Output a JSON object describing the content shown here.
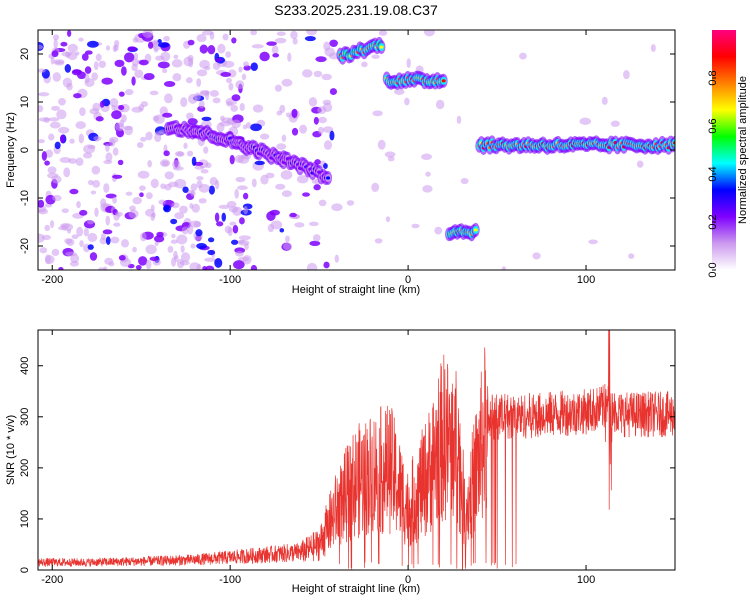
{
  "title": "S233.2025.231.19.08.C37",
  "chart_data": [
    {
      "type": "heatmap",
      "title": "S233.2025.231.19.08.C37",
      "xlabel": "Height of straight line (km)",
      "ylabel": "Frequency (Hz)",
      "xlim": [
        -208,
        150
      ],
      "ylim": [
        -25,
        25
      ],
      "xticks": [
        -200,
        -100,
        0,
        100
      ],
      "yticks": [
        -20,
        -10,
        0,
        10,
        20
      ],
      "xtick_labels": [
        "-200",
        "-100",
        "0",
        "100"
      ],
      "ytick_labels": [
        "-20",
        "-10",
        "0",
        "10",
        "20"
      ],
      "colorbar": {
        "label": "Normalized spectral amplitude",
        "range": [
          0,
          1
        ],
        "ticks": [
          0,
          0.2,
          0.4,
          0.6,
          0.8
        ],
        "tick_labels": [
          "0.0",
          "0.2",
          "0.4",
          "0.6",
          "0.8"
        ],
        "colors": [
          "#ffffff",
          "#cc99ee",
          "#7f00ff",
          "#0000ff",
          "#00ffff",
          "#00ff00",
          "#ffff00",
          "#ff8000",
          "#ff0000",
          "#ff0080"
        ]
      },
      "features": [
        {
          "name": "drifting chirp",
          "x": [
            -135,
            -120,
            -100,
            -85,
            -70,
            -55,
            -45
          ],
          "y": [
            5,
            4,
            2,
            0,
            -2,
            -4,
            -6
          ],
          "amplitude": 0.3
        },
        {
          "name": "top tone",
          "x": [
            -38,
            -15
          ],
          "y": [
            19.5,
            22
          ],
          "amplitude": 0.75
        },
        {
          "name": "15 Hz tone",
          "x": [
            -12,
            20
          ],
          "y": [
            14.5,
            14.5
          ],
          "amplitude": 0.85
        },
        {
          "name": "-17 Hz tone",
          "x": [
            23,
            38
          ],
          "y": [
            -17,
            -17
          ],
          "amplitude": 0.85
        },
        {
          "name": "1 Hz tone",
          "x": [
            40,
            150
          ],
          "y": [
            1,
            1
          ],
          "amplitude": 0.9
        }
      ]
    },
    {
      "type": "line",
      "xlabel": "Height of straight line (km)",
      "ylabel": "SNR (10 * v/v)",
      "xlim": [
        -208,
        150
      ],
      "ylim": [
        0,
        470
      ],
      "xticks": [
        -200,
        -100,
        0,
        100
      ],
      "yticks": [
        0,
        100,
        200,
        300,
        400
      ],
      "xtick_labels": [
        "-200",
        "-100",
        "0",
        "100"
      ],
      "ytick_labels": [
        "0",
        "100",
        "200",
        "300",
        "400"
      ],
      "line_color": "#e8332f",
      "series": [
        {
          "name": "SNR",
          "x": [
            -208,
            -180,
            -150,
            -120,
            -100,
            -80,
            -60,
            -50,
            -40,
            -30,
            -20,
            -10,
            0,
            10,
            20,
            28,
            32,
            40,
            45,
            60,
            80,
            100,
            113,
            120,
            150
          ],
          "y": [
            15,
            15,
            17,
            20,
            25,
            30,
            35,
            50,
            120,
            170,
            190,
            200,
            120,
            180,
            260,
            240,
            110,
            220,
            300,
            300,
            305,
            310,
            320,
            305,
            305
          ]
        }
      ],
      "annotations": [
        {
          "x": 113,
          "y": 470,
          "text": "spike"
        },
        {
          "x": 113,
          "y": 118,
          "text": "dip"
        }
      ]
    }
  ]
}
